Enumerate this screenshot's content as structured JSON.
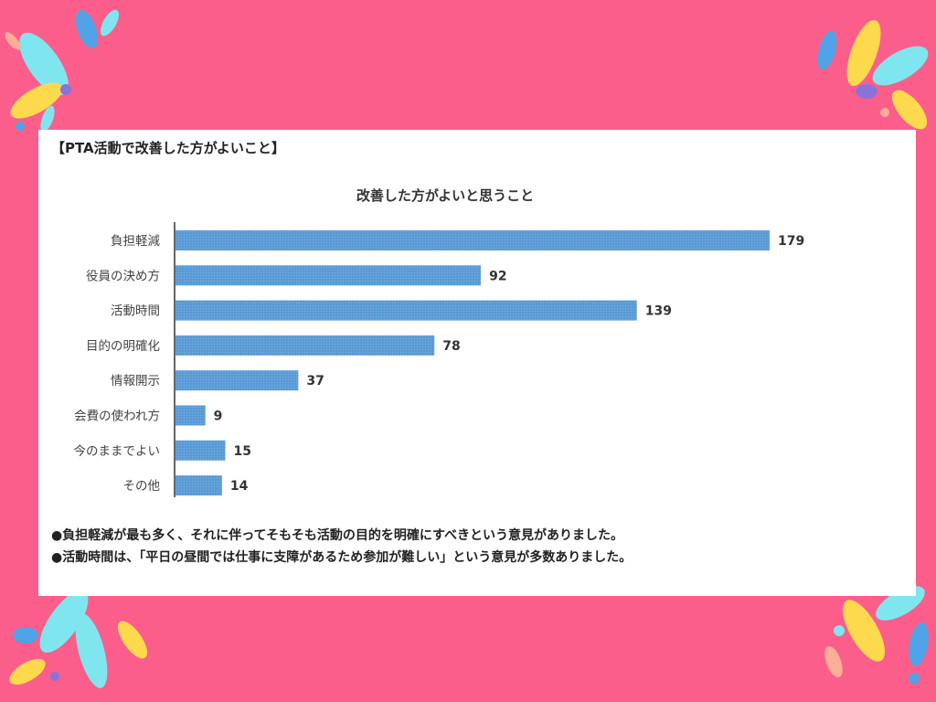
{
  "page": {
    "heading": "【PTA活動で改善した方がよいこと】",
    "notes": [
      "●負担軽減が最も多く、それに伴ってそもそも活動の目的を明確にすべきという意見がありました。",
      "●活動時間は、「平日の昼間では仕事に支障があるため参加が難しい」という意見が多数ありました。"
    ]
  },
  "colors": {
    "background": "#fb5e8b",
    "card": "#ffffff",
    "bar": "#5b9bd5",
    "deco_yellow": "#fdd94e",
    "deco_cyan": "#7fe6ef",
    "deco_blue": "#4fa3e6",
    "deco_purple": "#8b72d8",
    "deco_peach": "#fcae98"
  },
  "chart_data": {
    "type": "bar",
    "orientation": "horizontal",
    "title": "改善した方がよいと思うこと",
    "categories": [
      "負担軽減",
      "役員の決め方",
      "活動時間",
      "目的の明確化",
      "情報開示",
      "会費の使われ方",
      "今のままでよい",
      "その他"
    ],
    "values": [
      179,
      92,
      139,
      78,
      37,
      9,
      15,
      14
    ],
    "xlim": [
      0,
      179
    ],
    "grid": false,
    "legend": "none",
    "data_labels": true
  }
}
